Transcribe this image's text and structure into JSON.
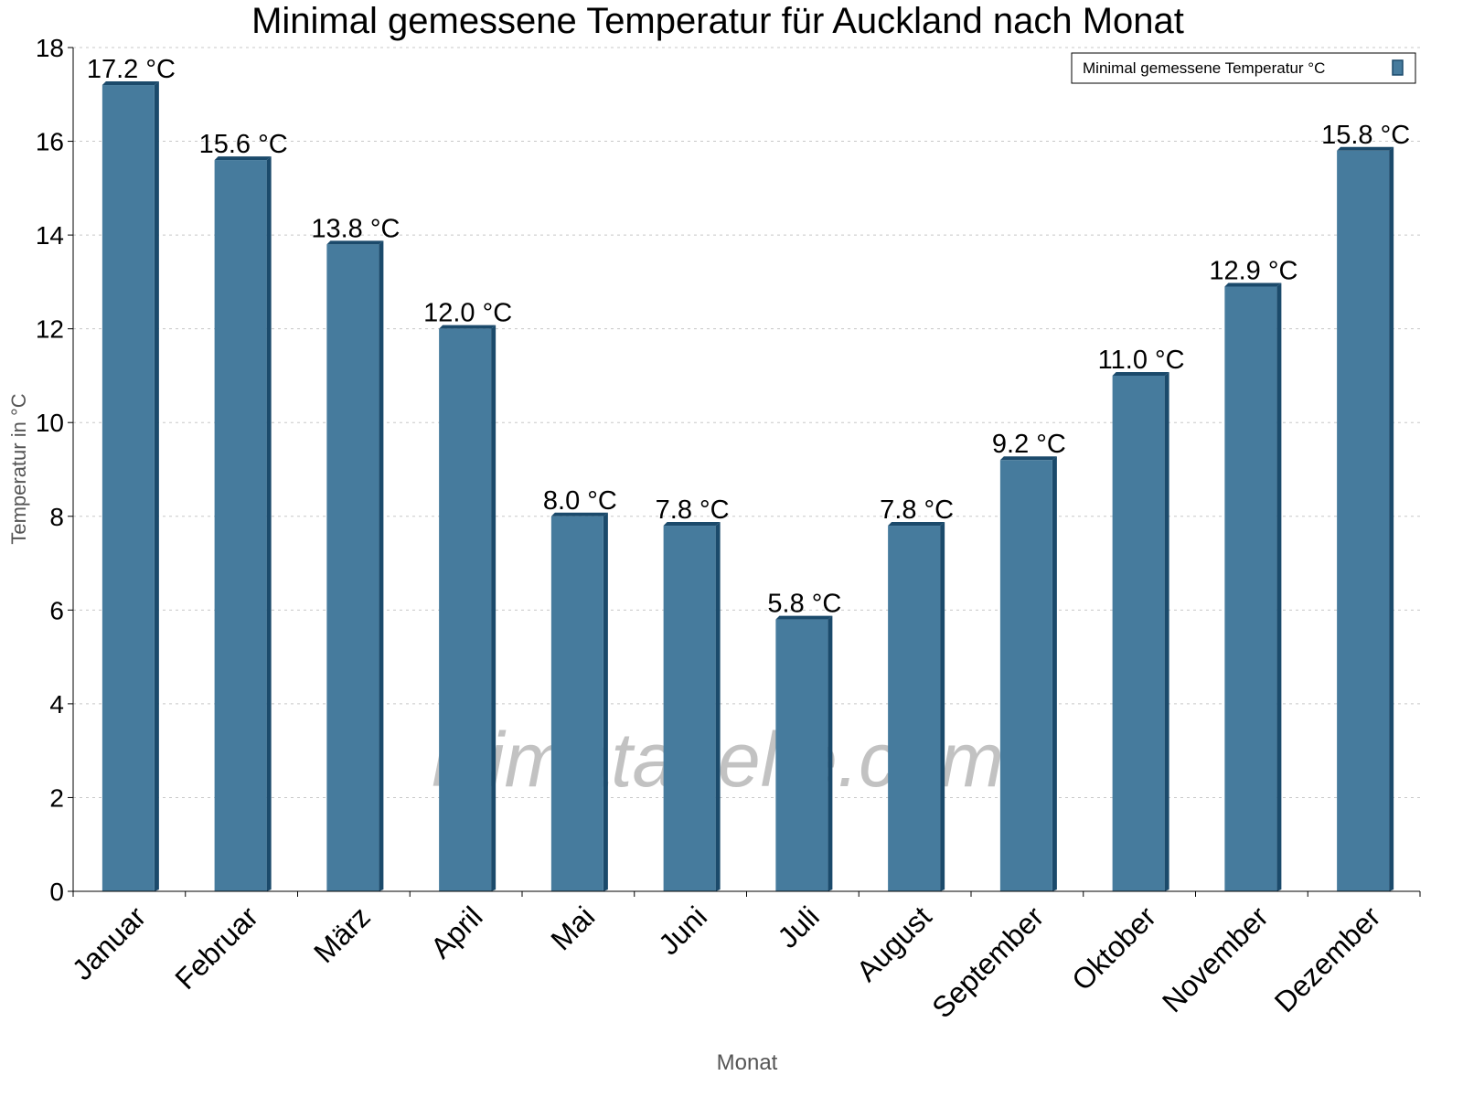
{
  "chart_data": {
    "type": "bar",
    "title": "Minimal gemessene Temperatur für Auckland nach Monat",
    "xlabel": "Monat",
    "ylabel": "Temperatur in °C",
    "categories": [
      "Januar",
      "Februar",
      "März",
      "April",
      "Mai",
      "Juni",
      "Juli",
      "August",
      "September",
      "Oktober",
      "November",
      "Dezember"
    ],
    "series": [
      {
        "name": "Minimal gemessene Temperatur °C",
        "values": [
          17.2,
          15.6,
          13.8,
          12.0,
          8.0,
          7.8,
          5.8,
          7.8,
          9.2,
          11.0,
          12.9,
          15.8
        ]
      }
    ],
    "value_labels": [
      "17.2 °C",
      "15.6 °C",
      "13.8 °C",
      "12.0 °C",
      "8.0 °C",
      "7.8 °C",
      "5.8 °C",
      "7.8 °C",
      "9.2 °C",
      "11.0 °C",
      "12.9 °C",
      "15.8 °C"
    ],
    "ylim": [
      0,
      18
    ],
    "yticks": [
      0,
      2,
      4,
      6,
      8,
      10,
      12,
      14,
      16,
      18
    ],
    "grid": true,
    "legend_position": "top-right",
    "colors": {
      "bar": "#467b9d",
      "bar_side": "#1b4a6b"
    },
    "watermark": "klimatabelle.com"
  }
}
